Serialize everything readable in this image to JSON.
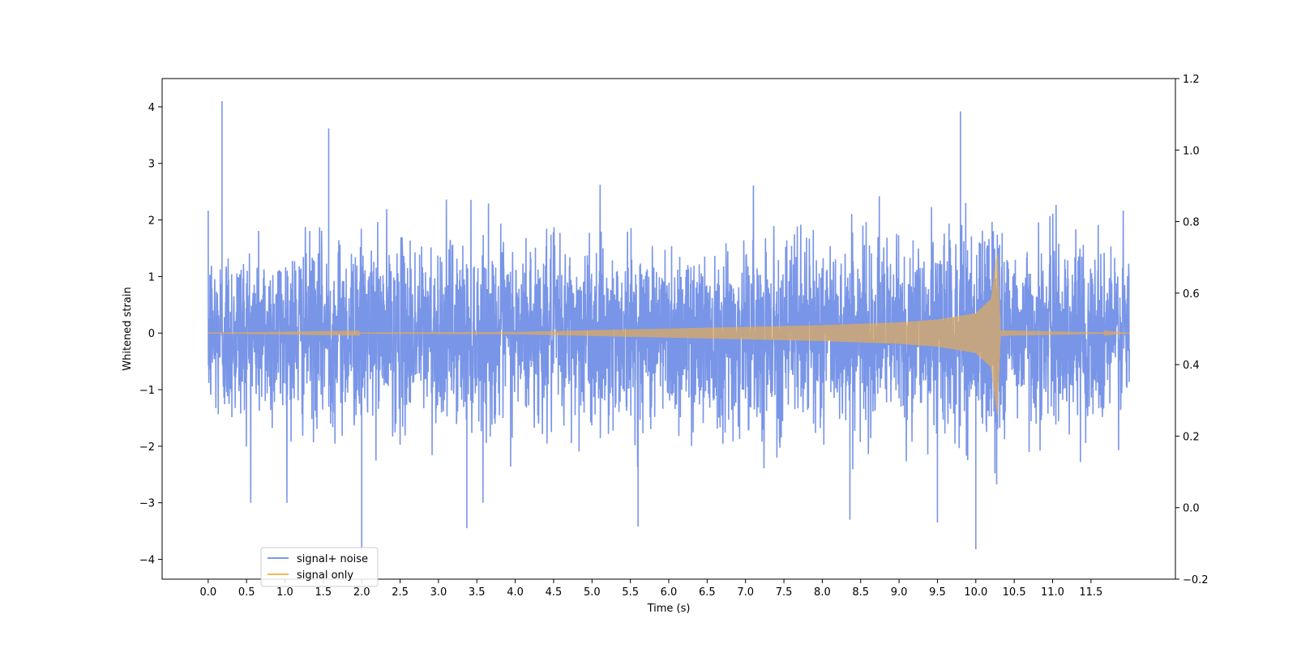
{
  "chart_data": {
    "type": "line",
    "title": "",
    "xlabel": "Time (s)",
    "ylabel": "Whitened strain",
    "y2label": "",
    "xlim": [
      -0.6,
      12.6
    ],
    "ylim": [
      -4.35,
      4.5
    ],
    "y2lim": [
      -0.2,
      1.2
    ],
    "xticks": [
      "0.0",
      "0.5",
      "1.0",
      "1.5",
      "2.0",
      "2.5",
      "3.0",
      "3.5",
      "4.0",
      "4.5",
      "5.0",
      "5.5",
      "6.0",
      "6.5",
      "7.0",
      "7.5",
      "8.0",
      "8.5",
      "9.0",
      "9.5",
      "10.0",
      "10.5",
      "11.0",
      "11.5"
    ],
    "yticks": [
      "4",
      "3",
      "2",
      "1",
      "0",
      "−1",
      "−2",
      "−3",
      "−4"
    ],
    "y2ticks": [
      "1.2",
      "1.0",
      "0.8",
      "0.6",
      "0.4",
      "0.2",
      "0.0",
      "−0.2"
    ],
    "grid": false,
    "legend_position": "lower-left",
    "series": [
      {
        "name": "signal+ noise",
        "color": "#6a89e4",
        "description_values": {
          "x_range": [
            0.0,
            12.0
          ],
          "baseline_range": [
            -1.0,
            1.0
          ],
          "typical_peak_range": [
            -2.5,
            2.5
          ],
          "extreme_peaks": [
            {
              "x": 0.18,
              "y": 4.1
            },
            {
              "x": 1.57,
              "y": 3.62
            },
            {
              "x": 2.0,
              "y": -3.85
            },
            {
              "x": 3.37,
              "y": -3.45
            },
            {
              "x": 9.8,
              "y": 3.92
            },
            {
              "x": 10.0,
              "y": -3.82
            },
            {
              "x": 5.6,
              "y": -3.42
            },
            {
              "x": 8.36,
              "y": -3.3
            },
            {
              "x": 9.5,
              "y": -3.35
            }
          ]
        }
      },
      {
        "name": "signal only",
        "color": "#f5b041",
        "description_values": {
          "x_range": [
            0.0,
            12.0
          ],
          "envelope": [
            {
              "x": 0.0,
              "amp": 0.0
            },
            {
              "x": 4.0,
              "amp": 0.02
            },
            {
              "x": 5.0,
              "amp": 0.05
            },
            {
              "x": 6.0,
              "amp": 0.08
            },
            {
              "x": 7.0,
              "amp": 0.11
            },
            {
              "x": 8.0,
              "amp": 0.14
            },
            {
              "x": 9.0,
              "amp": 0.19
            },
            {
              "x": 9.5,
              "amp": 0.24
            },
            {
              "x": 10.0,
              "amp": 0.35
            },
            {
              "x": 10.2,
              "amp": 0.6
            },
            {
              "x": 10.28,
              "amp": 1.45
            },
            {
              "x": 10.32,
              "amp": 0.05
            },
            {
              "x": 12.0,
              "amp": 0.0
            }
          ],
          "merger_time": 10.28
        }
      }
    ]
  }
}
